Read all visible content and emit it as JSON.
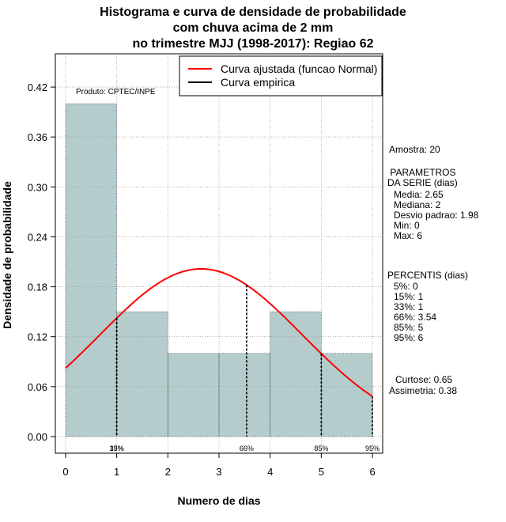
{
  "chart_data": {
    "type": "bar",
    "title_lines": [
      "Histograma e curva de densidade de probabilidade",
      "com chuva acima de 2 mm",
      "no trimestre MJJ (1998-2017): Regiao 62"
    ],
    "xlabel": "Numero de dias",
    "ylabel": "Densidade de probabilidade",
    "xlim": [
      -0.2,
      6.2
    ],
    "ylim": [
      -0.02,
      0.46
    ],
    "xticks": [
      0,
      1,
      2,
      3,
      4,
      5,
      6
    ],
    "yticks": [
      0.0,
      0.06,
      0.12,
      0.18,
      0.24,
      0.3,
      0.36,
      0.42
    ],
    "ytick_labels": [
      "0.00",
      "0.06",
      "0.12",
      "0.18",
      "0.24",
      "0.30",
      "0.36",
      "0.42"
    ],
    "grid": true,
    "bins": [
      {
        "x0": 0,
        "x1": 1,
        "value": 0.4
      },
      {
        "x0": 1,
        "x1": 2,
        "value": 0.15
      },
      {
        "x0": 2,
        "x1": 3,
        "value": 0.1
      },
      {
        "x0": 3,
        "x1": 4,
        "value": 0.1
      },
      {
        "x0": 4,
        "x1": 5,
        "value": 0.15
      },
      {
        "x0": 5,
        "x1": 6,
        "value": 0.1
      }
    ],
    "normal_curve": {
      "name": "Curva ajustada (funcao Normal)",
      "mean": 2.65,
      "sd": 1.98,
      "x_range": [
        0,
        6
      ],
      "color": "#ff0000"
    },
    "percentile_lines": [
      {
        "label": "15%",
        "x": 1
      },
      {
        "label": "33%",
        "x": 1
      },
      {
        "label": "66%",
        "x": 3.54
      },
      {
        "label": "85%",
        "x": 5
      },
      {
        "label": "95%",
        "x": 6
      }
    ],
    "legend": {
      "position": "top-right",
      "entries": [
        {
          "label": "Curva ajustada (funcao Normal)",
          "color": "#ff0000"
        },
        {
          "label": "Curva empirica",
          "color": "#000000"
        }
      ]
    },
    "annotation": "Produto: CPTEC/INPE",
    "bar_color": "#b4cccc"
  },
  "side_panel": {
    "amostra": "Amostra: 20",
    "parametros_title": " PARAMETROS\nDA SERIE (dias)",
    "parametros_values": "Media: 2.65\nMediana: 2\nDesvio padrao: 1.98\nMin: 0\nMax: 6",
    "percentis_title": "PERCENTIS (dias)",
    "percentis_values": "5%: 0\n15%: 1\n33%: 1\n66%: 3.54\n85%: 5\n95%: 6",
    "curtose": "Curtose: 0.65",
    "assimetria": "Assimetria: 0.38"
  }
}
